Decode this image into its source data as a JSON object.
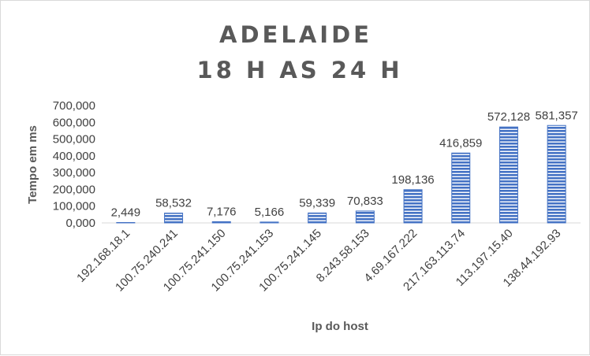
{
  "chart_data": {
    "type": "bar",
    "title": [
      "ADELAIDE",
      "18 H AS 24 H"
    ],
    "xlabel": "Ip do host",
    "ylabel": "Tempo em ms",
    "categories": [
      "192.168.18.1",
      "100.75.240.241",
      "100.75.241.150",
      "100.75.241.153",
      "100.75.241.145",
      "8.243.58.153",
      "4.69.167.222",
      "217.163.113.74",
      "113.197.15.40",
      "138.44.192.93"
    ],
    "values": [
      2.449,
      58.532,
      7.176,
      5.166,
      59.339,
      70.833,
      198.136,
      416.859,
      572.128,
      581.357
    ],
    "data_labels": [
      "2,449",
      "58,532",
      "7,176",
      "5,166",
      "59,339",
      "70,833",
      "198,136",
      "416,859",
      "572,128",
      "581,357"
    ],
    "yticks": [
      0,
      100,
      200,
      300,
      400,
      500,
      600,
      700
    ],
    "ytick_labels": [
      "0,000",
      "100,000",
      "200,000",
      "300,000",
      "400,000",
      "500,000",
      "600,000",
      "700,000"
    ],
    "ylim": [
      0,
      700
    ],
    "grid": false,
    "legend": "none",
    "colors": {
      "bar_fill": "#4472c4",
      "bar_stripe": "#ffffff",
      "text": "#404040",
      "title": "#595959",
      "axis": "#d9d9d9"
    }
  }
}
